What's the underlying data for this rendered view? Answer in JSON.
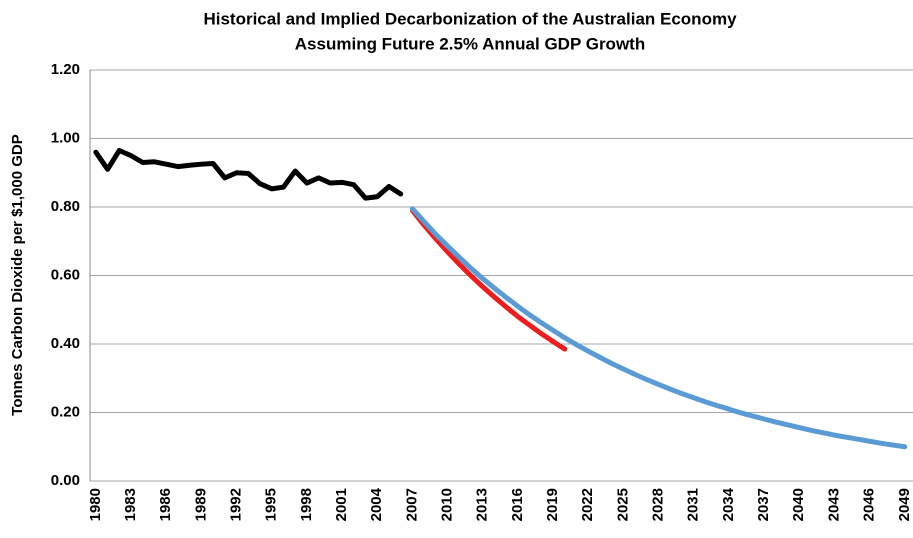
{
  "chart_data": {
    "type": "line",
    "title": "Historical and Implied Decarbonization of the Australian Economy",
    "subtitle": "Assuming Future 2.5% Annual GDP Growth",
    "y_label": "Tonnes Carbon Dioxide per $1,000  GDP",
    "x": [
      1980,
      1981,
      1982,
      1983,
      1984,
      1985,
      1986,
      1987,
      1988,
      1989,
      1990,
      1991,
      1992,
      1993,
      1994,
      1995,
      1996,
      1997,
      1998,
      1999,
      2000,
      2001,
      2002,
      2003,
      2004,
      2005,
      2006,
      2007,
      2008,
      2009,
      2010,
      2011,
      2012,
      2013,
      2014,
      2015,
      2016,
      2017,
      2018,
      2019,
      2020,
      2021,
      2022,
      2023,
      2024,
      2025,
      2026,
      2027,
      2028,
      2029,
      2030,
      2031,
      2032,
      2033,
      2034,
      2035,
      2036,
      2037,
      2038,
      2039,
      2040,
      2041,
      2042,
      2043,
      2044,
      2045,
      2046,
      2047,
      2048,
      2049
    ],
    "series": [
      {
        "color": "#000000",
        "values": [
          0.96,
          0.91,
          0.965,
          0.95,
          0.93,
          0.932,
          0.925,
          0.918,
          0.922,
          0.925,
          0.927,
          0.885,
          0.9,
          0.898,
          0.868,
          0.853,
          0.858,
          0.905,
          0.87,
          0.885,
          0.87,
          0.872,
          0.865,
          0.826,
          0.83,
          0.86,
          0.838,
          null,
          null,
          null,
          null,
          null,
          null,
          null,
          null,
          null,
          null,
          null,
          null,
          null,
          null,
          null,
          null,
          null,
          null,
          null,
          null,
          null,
          null,
          null,
          null,
          null,
          null,
          null,
          null,
          null,
          null,
          null,
          null,
          null,
          null,
          null,
          null,
          null,
          null,
          null,
          null,
          null,
          null,
          null
        ]
      },
      {
        "color": "#ee1c1c",
        "values": [
          null,
          null,
          null,
          null,
          null,
          null,
          null,
          null,
          null,
          null,
          null,
          null,
          null,
          null,
          null,
          null,
          null,
          null,
          null,
          null,
          null,
          null,
          null,
          null,
          null,
          null,
          null,
          0.79,
          0.747,
          0.707,
          0.669,
          0.633,
          0.599,
          0.567,
          0.537,
          0.508,
          0.48,
          0.455,
          0.43,
          0.407,
          0.385,
          null,
          null,
          null,
          null,
          null,
          null,
          null,
          null,
          null,
          null,
          null,
          null,
          null,
          null,
          null,
          null,
          null,
          null,
          null,
          null,
          null,
          null,
          null,
          null,
          null,
          null,
          null,
          null,
          null
        ]
      },
      {
        "color": "#5b9bd5",
        "values": [
          null,
          null,
          null,
          null,
          null,
          null,
          null,
          null,
          null,
          null,
          null,
          null,
          null,
          null,
          null,
          null,
          null,
          null,
          null,
          null,
          null,
          null,
          null,
          null,
          null,
          null,
          null,
          0.795,
          0.757,
          0.72,
          0.686,
          0.653,
          0.621,
          0.591,
          0.563,
          0.536,
          0.51,
          0.485,
          0.462,
          0.44,
          0.418,
          0.398,
          0.379,
          0.361,
          0.343,
          0.327,
          0.311,
          0.296,
          0.282,
          0.268,
          0.255,
          0.243,
          0.231,
          0.22,
          0.21,
          0.199,
          0.19,
          0.181,
          0.172,
          0.164,
          0.156,
          0.148,
          0.141,
          0.134,
          0.128,
          0.122,
          0.116,
          0.11,
          0.105,
          0.1
        ]
      }
    ],
    "xlim": [
      1979.5,
      2049.7
    ],
    "xticks": [
      1980,
      1983,
      1986,
      1989,
      1992,
      1995,
      1998,
      2001,
      2004,
      2007,
      2010,
      2013,
      2016,
      2019,
      2022,
      2025,
      2028,
      2031,
      2034,
      2037,
      2040,
      2043,
      2046,
      2049
    ],
    "ylim": [
      0,
      1.2
    ],
    "yticks": [
      {
        "value": 0,
        "label": "0.00"
      },
      {
        "value": 0.2,
        "label": "0.20"
      },
      {
        "value": 0.4,
        "label": "0.40"
      },
      {
        "value": 0.6,
        "label": "0.60"
      },
      {
        "value": 0.8,
        "label": "0.80"
      },
      {
        "value": 1.0,
        "label": "1.00"
      },
      {
        "value": 1.2,
        "label": "1.20"
      }
    ],
    "grid": true
  }
}
